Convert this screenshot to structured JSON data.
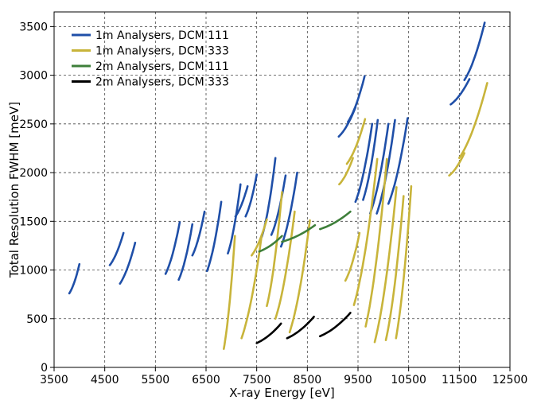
{
  "chart_data": {
    "type": "line",
    "title": "",
    "xlabel": "X-ray Energy [eV]",
    "ylabel": "Total Resolution FWHM [meV]",
    "xlim": [
      3500,
      12500
    ],
    "ylim": [
      0,
      3650
    ],
    "xticks": [
      3500,
      4500,
      5500,
      6500,
      7500,
      8500,
      9500,
      10500,
      11500,
      12500
    ],
    "yticks": [
      0,
      500,
      1000,
      1500,
      2000,
      2500,
      3000,
      3500
    ],
    "grid": true,
    "legend_position": "top-left",
    "series": [
      {
        "name": "1m Analysers, DCM 111",
        "color": "#1f4fa8",
        "segments": [
          [
            [
              3800,
              760
            ],
            [
              4000,
              1060
            ]
          ],
          [
            [
              4600,
              1050
            ],
            [
              4870,
              1380
            ]
          ],
          [
            [
              4800,
              860
            ],
            [
              5100,
              1280
            ]
          ],
          [
            [
              5700,
              960
            ],
            [
              5980,
              1490
            ]
          ],
          [
            [
              5960,
              900
            ],
            [
              6230,
              1470
            ]
          ],
          [
            [
              6230,
              1150
            ],
            [
              6470,
              1600
            ]
          ],
          [
            [
              6520,
              990
            ],
            [
              6800,
              1700
            ]
          ],
          [
            [
              6930,
              1170
            ],
            [
              7180,
              1880
            ]
          ],
          [
            [
              7080,
              1550
            ],
            [
              7320,
              1860
            ]
          ],
          [
            [
              7280,
              1550
            ],
            [
              7500,
              1980
            ]
          ],
          [
            [
              7600,
              1340
            ],
            [
              7870,
              2150
            ]
          ],
          [
            [
              7790,
              1360
            ],
            [
              8070,
              1970
            ]
          ],
          [
            [
              7980,
              1240
            ],
            [
              8300,
              2000
            ]
          ],
          [
            [
              9120,
              2370
            ],
            [
              9450,
              2670
            ]
          ],
          [
            [
              9300,
              2520
            ],
            [
              9630,
              2990
            ]
          ],
          [
            [
              9450,
              1700
            ],
            [
              9780,
              2500
            ]
          ],
          [
            [
              9600,
              1720
            ],
            [
              9890,
              2540
            ]
          ],
          [
            [
              9740,
              1580
            ],
            [
              10100,
              2500
            ]
          ],
          [
            [
              9870,
              1580
            ],
            [
              10230,
              2540
            ]
          ],
          [
            [
              10100,
              1680
            ],
            [
              10480,
              2560
            ]
          ],
          [
            [
              11330,
              2700
            ],
            [
              11700,
              2960
            ]
          ],
          [
            [
              11600,
              2950
            ],
            [
              12000,
              3540
            ]
          ]
        ]
      },
      {
        "name": "1m Analysers, DCM 333",
        "color": "#c8b43a",
        "segments": [
          [
            [
              6850,
              190
            ],
            [
              7070,
              1350
            ]
          ],
          [
            [
              7200,
              300
            ],
            [
              7600,
              1360
            ]
          ],
          [
            [
              7400,
              1150
            ],
            [
              7700,
              1520
            ]
          ],
          [
            [
              7700,
              630
            ],
            [
              8000,
              1800
            ]
          ],
          [
            [
              7870,
              500
            ],
            [
              8250,
              1600
            ]
          ],
          [
            [
              8150,
              360
            ],
            [
              8550,
              1510
            ]
          ],
          [
            [
              9130,
              1880
            ],
            [
              9400,
              2150
            ]
          ],
          [
            [
              9280,
              2090
            ],
            [
              9640,
              2550
            ]
          ],
          [
            [
              9250,
              890
            ],
            [
              9530,
              1380
            ]
          ],
          [
            [
              9420,
              640
            ],
            [
              9880,
              2140
            ]
          ],
          [
            [
              9650,
              420
            ],
            [
              10070,
              2140
            ]
          ],
          [
            [
              9830,
              260
            ],
            [
              10260,
              1850
            ]
          ],
          [
            [
              10050,
              280
            ],
            [
              10400,
              1760
            ]
          ],
          [
            [
              10250,
              300
            ],
            [
              10550,
              1860
            ]
          ],
          [
            [
              11300,
              1970
            ],
            [
              11600,
              2200
            ]
          ],
          [
            [
              11500,
              2150
            ],
            [
              12050,
              2920
            ]
          ]
        ]
      },
      {
        "name": "2m Analysers, DCM 111",
        "color": "#3e7f3a",
        "segments": [
          [
            [
              7550,
              1190
            ],
            [
              8000,
              1350
            ]
          ],
          [
            [
              8000,
              1290
            ],
            [
              8650,
              1460
            ]
          ],
          [
            [
              8750,
              1420
            ],
            [
              9350,
              1600
            ]
          ]
        ]
      },
      {
        "name": "2m Analysers, DCM 333",
        "color": "#000000",
        "segments": [
          [
            [
              7500,
              250
            ],
            [
              7980,
              450
            ]
          ],
          [
            [
              8100,
              300
            ],
            [
              8630,
              520
            ]
          ],
          [
            [
              8750,
              320
            ],
            [
              9350,
              560
            ]
          ]
        ]
      }
    ]
  }
}
